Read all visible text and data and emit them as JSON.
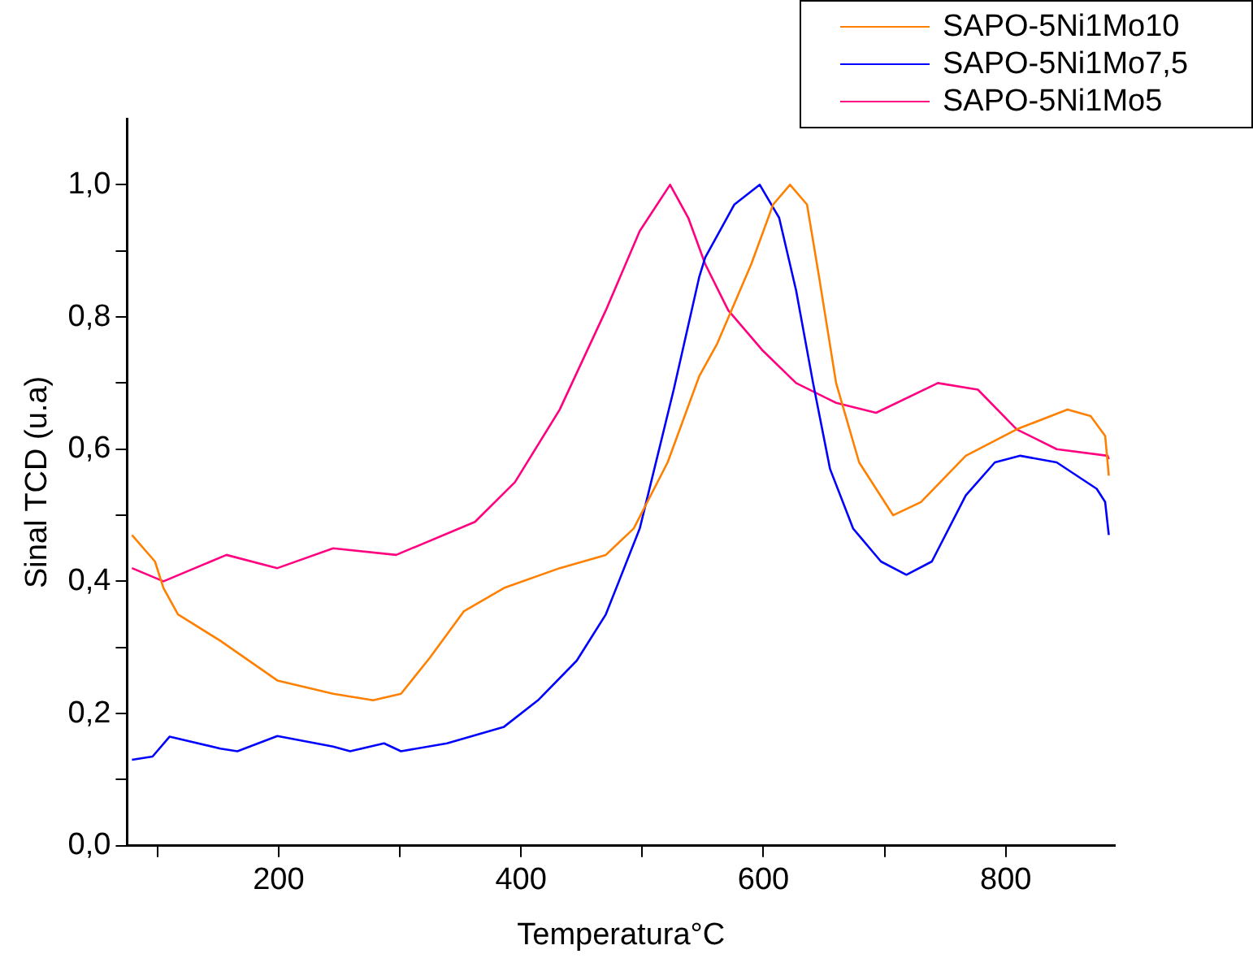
{
  "chart_data": {
    "type": "line",
    "xlabel": "Temperatura°C",
    "ylabel": "Sinal TCD (u.a)",
    "xlim": [
      75,
      890
    ],
    "ylim": [
      0,
      1.1
    ],
    "xticks": [
      {
        "value": 100,
        "label": null
      },
      200,
      {
        "value": 300,
        "label": null
      },
      400,
      {
        "value": 500,
        "label": null
      },
      600,
      {
        "value": 700,
        "label": null
      },
      800
    ],
    "yticks": [
      {
        "value": 0,
        "label": "0,0"
      },
      {
        "value": 0.1,
        "label": null
      },
      {
        "value": 0.2,
        "label": "0,2"
      },
      {
        "value": 0.3,
        "label": null
      },
      {
        "value": 0.4,
        "label": "0,4"
      },
      {
        "value": 0.5,
        "label": null
      },
      {
        "value": 0.6,
        "label": "0,6"
      },
      {
        "value": 0.7,
        "label": null
      },
      {
        "value": 0.8,
        "label": "0,8"
      },
      {
        "value": 0.9,
        "label": null
      },
      {
        "value": 1.0,
        "label": "1,0"
      }
    ],
    "grid": false,
    "legend": "top right",
    "marker": "none",
    "line_style": "solid",
    "series": [
      {
        "name": "SAPO-5Ni1Mo10",
        "color": "#ff8000",
        "x": [
          79,
          98,
          105,
          117,
          152,
          199,
          245,
          278,
          301,
          325,
          353,
          386,
          432,
          470,
          493,
          521,
          547,
          562,
          590,
          608,
          622,
          636,
          646,
          660,
          679,
          707,
          730,
          767,
          809,
          851,
          870,
          882,
          885
        ],
        "values": [
          0.47,
          0.43,
          0.39,
          0.35,
          0.31,
          0.25,
          0.23,
          0.22,
          0.23,
          0.285,
          0.355,
          0.39,
          0.42,
          0.44,
          0.48,
          0.58,
          0.71,
          0.76,
          0.88,
          0.97,
          1.0,
          0.97,
          0.86,
          0.7,
          0.58,
          0.5,
          0.52,
          0.59,
          0.63,
          0.66,
          0.65,
          0.62,
          0.56
        ]
      },
      {
        "name": "SAPO-5Ni1Mo7,5",
        "color": "#0000ff",
        "x": [
          79,
          96,
          110,
          152,
          166,
          199,
          245,
          259,
          287,
          301,
          339,
          386,
          414,
          446,
          470,
          498,
          526,
          547,
          552,
          576,
          597,
          613,
          627,
          641,
          655,
          674,
          697,
          718,
          739,
          767,
          791,
          812,
          842,
          875,
          882,
          885
        ],
        "values": [
          0.13,
          0.135,
          0.165,
          0.147,
          0.143,
          0.166,
          0.15,
          0.143,
          0.155,
          0.143,
          0.155,
          0.18,
          0.22,
          0.28,
          0.35,
          0.48,
          0.69,
          0.86,
          0.89,
          0.97,
          1.0,
          0.95,
          0.84,
          0.7,
          0.57,
          0.48,
          0.43,
          0.41,
          0.43,
          0.53,
          0.58,
          0.59,
          0.58,
          0.54,
          0.52,
          0.47
        ]
      },
      {
        "name": "SAPO-5Ni1Mo5",
        "color": "#ff0080",
        "x": [
          79,
          105,
          157,
          199,
          245,
          297,
          362,
          395,
          432,
          470,
          498,
          523,
          538,
          552,
          571,
          599,
          627,
          660,
          693,
          744,
          777,
          809,
          842,
          884,
          885
        ],
        "values": [
          0.42,
          0.4,
          0.44,
          0.42,
          0.45,
          0.44,
          0.49,
          0.55,
          0.66,
          0.81,
          0.93,
          1.0,
          0.95,
          0.88,
          0.81,
          0.75,
          0.7,
          0.67,
          0.655,
          0.7,
          0.69,
          0.63,
          0.6,
          0.59,
          0.585
        ]
      }
    ]
  }
}
